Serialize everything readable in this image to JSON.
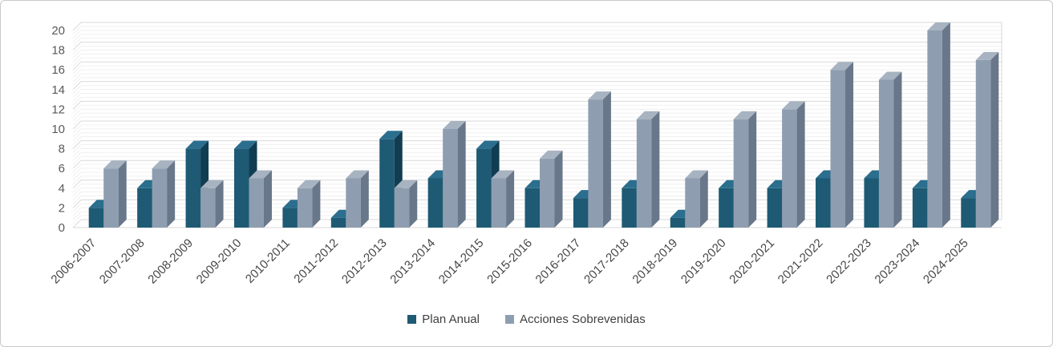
{
  "chart_data": {
    "type": "bar",
    "style": "3d-clustered",
    "title": "",
    "xlabel": "",
    "ylabel": "",
    "categories": [
      "2006-2007",
      "2007-2008",
      "2008-2009",
      "2009-2010",
      "2010-2011",
      "2011-2012",
      "2012-2013",
      "2013-2014",
      "2014-2015",
      "2015-2016",
      "2016-2017",
      "2017-2018",
      "2018-2019",
      "2019-2020",
      "2020-2021",
      "2021-2022",
      "2022-2023",
      "2023-2024",
      "2024-2025"
    ],
    "series": [
      {
        "name": "Plan Anual",
        "color": "#1e5a74",
        "color_top": "#2b6e8e",
        "color_side": "#113d52",
        "values": [
          2,
          4,
          8,
          8,
          2,
          1,
          9,
          5,
          8,
          4,
          3,
          4,
          1,
          4,
          4,
          5,
          5,
          4,
          3
        ]
      },
      {
        "name": "Acciones Sobrevenidas",
        "color": "#8e9eb0",
        "color_top": "#a7b3c0",
        "color_side": "#68778a",
        "values": [
          6,
          6,
          4,
          5,
          4,
          5,
          4,
          10,
          5,
          7,
          13,
          11,
          5,
          11,
          12,
          16,
          15,
          20,
          17
        ]
      }
    ],
    "ylim": [
      0,
      20
    ],
    "ytick_step": 2,
    "yticks": [
      "0",
      "2",
      "4",
      "6",
      "8",
      "10",
      "12",
      "14",
      "16",
      "18",
      "20"
    ],
    "minor_gridlines_per_major": 5,
    "grid": true,
    "legend_position": "bottom",
    "colors": {
      "major_gridline": "#d9d9d9",
      "minor_gridline": "#f0f0f0",
      "axis_text": "#595959",
      "category_text": "#474747",
      "frame_border": "#c9c9c9",
      "background": "#ffffff"
    }
  }
}
